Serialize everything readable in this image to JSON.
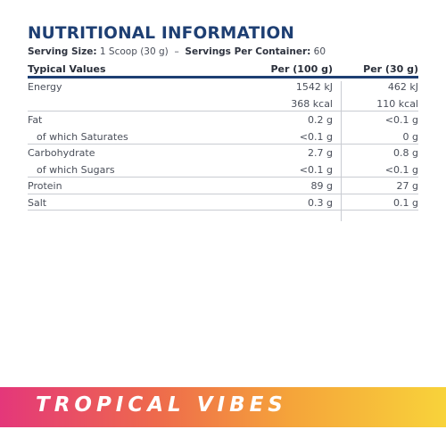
{
  "title": "NUTRITIONAL INFORMATION",
  "serving": {
    "size_label": "Serving Size:",
    "size_value": "1 Scoop (30 g)",
    "dash": "–",
    "servings_label": "Servings Per Container:",
    "servings_value": "60"
  },
  "table": {
    "headers": [
      "Typical Values",
      "Per (100 g)",
      "Per (30 g)"
    ],
    "rows": [
      {
        "label": "Energy",
        "per100": "1542 kJ",
        "per30": "462 kJ"
      },
      {
        "label": "",
        "per100": "368 kcal",
        "per30": "110 kcal"
      },
      {
        "label": "Fat",
        "per100": "0.2 g",
        "per30": "<0.1 g"
      },
      {
        "label": "of which Saturates",
        "per100": "<0.1 g",
        "per30": "0 g"
      },
      {
        "label": "Carbohydrate",
        "per100": "2.7 g",
        "per30": "0.8 g"
      },
      {
        "label": "of which Sugars",
        "per100": "<0.1 g",
        "per30": "<0.1 g"
      },
      {
        "label": "Protein",
        "per100": "89 g",
        "per30": "27 g"
      },
      {
        "label": "Salt",
        "per100": "0.3 g",
        "per30": "0.1 g"
      }
    ]
  },
  "banner": {
    "text": "TROPICAL VIBES",
    "colors": [
      "#e4377a",
      "#ee6a4c",
      "#f5a43a",
      "#f8d33a"
    ]
  }
}
